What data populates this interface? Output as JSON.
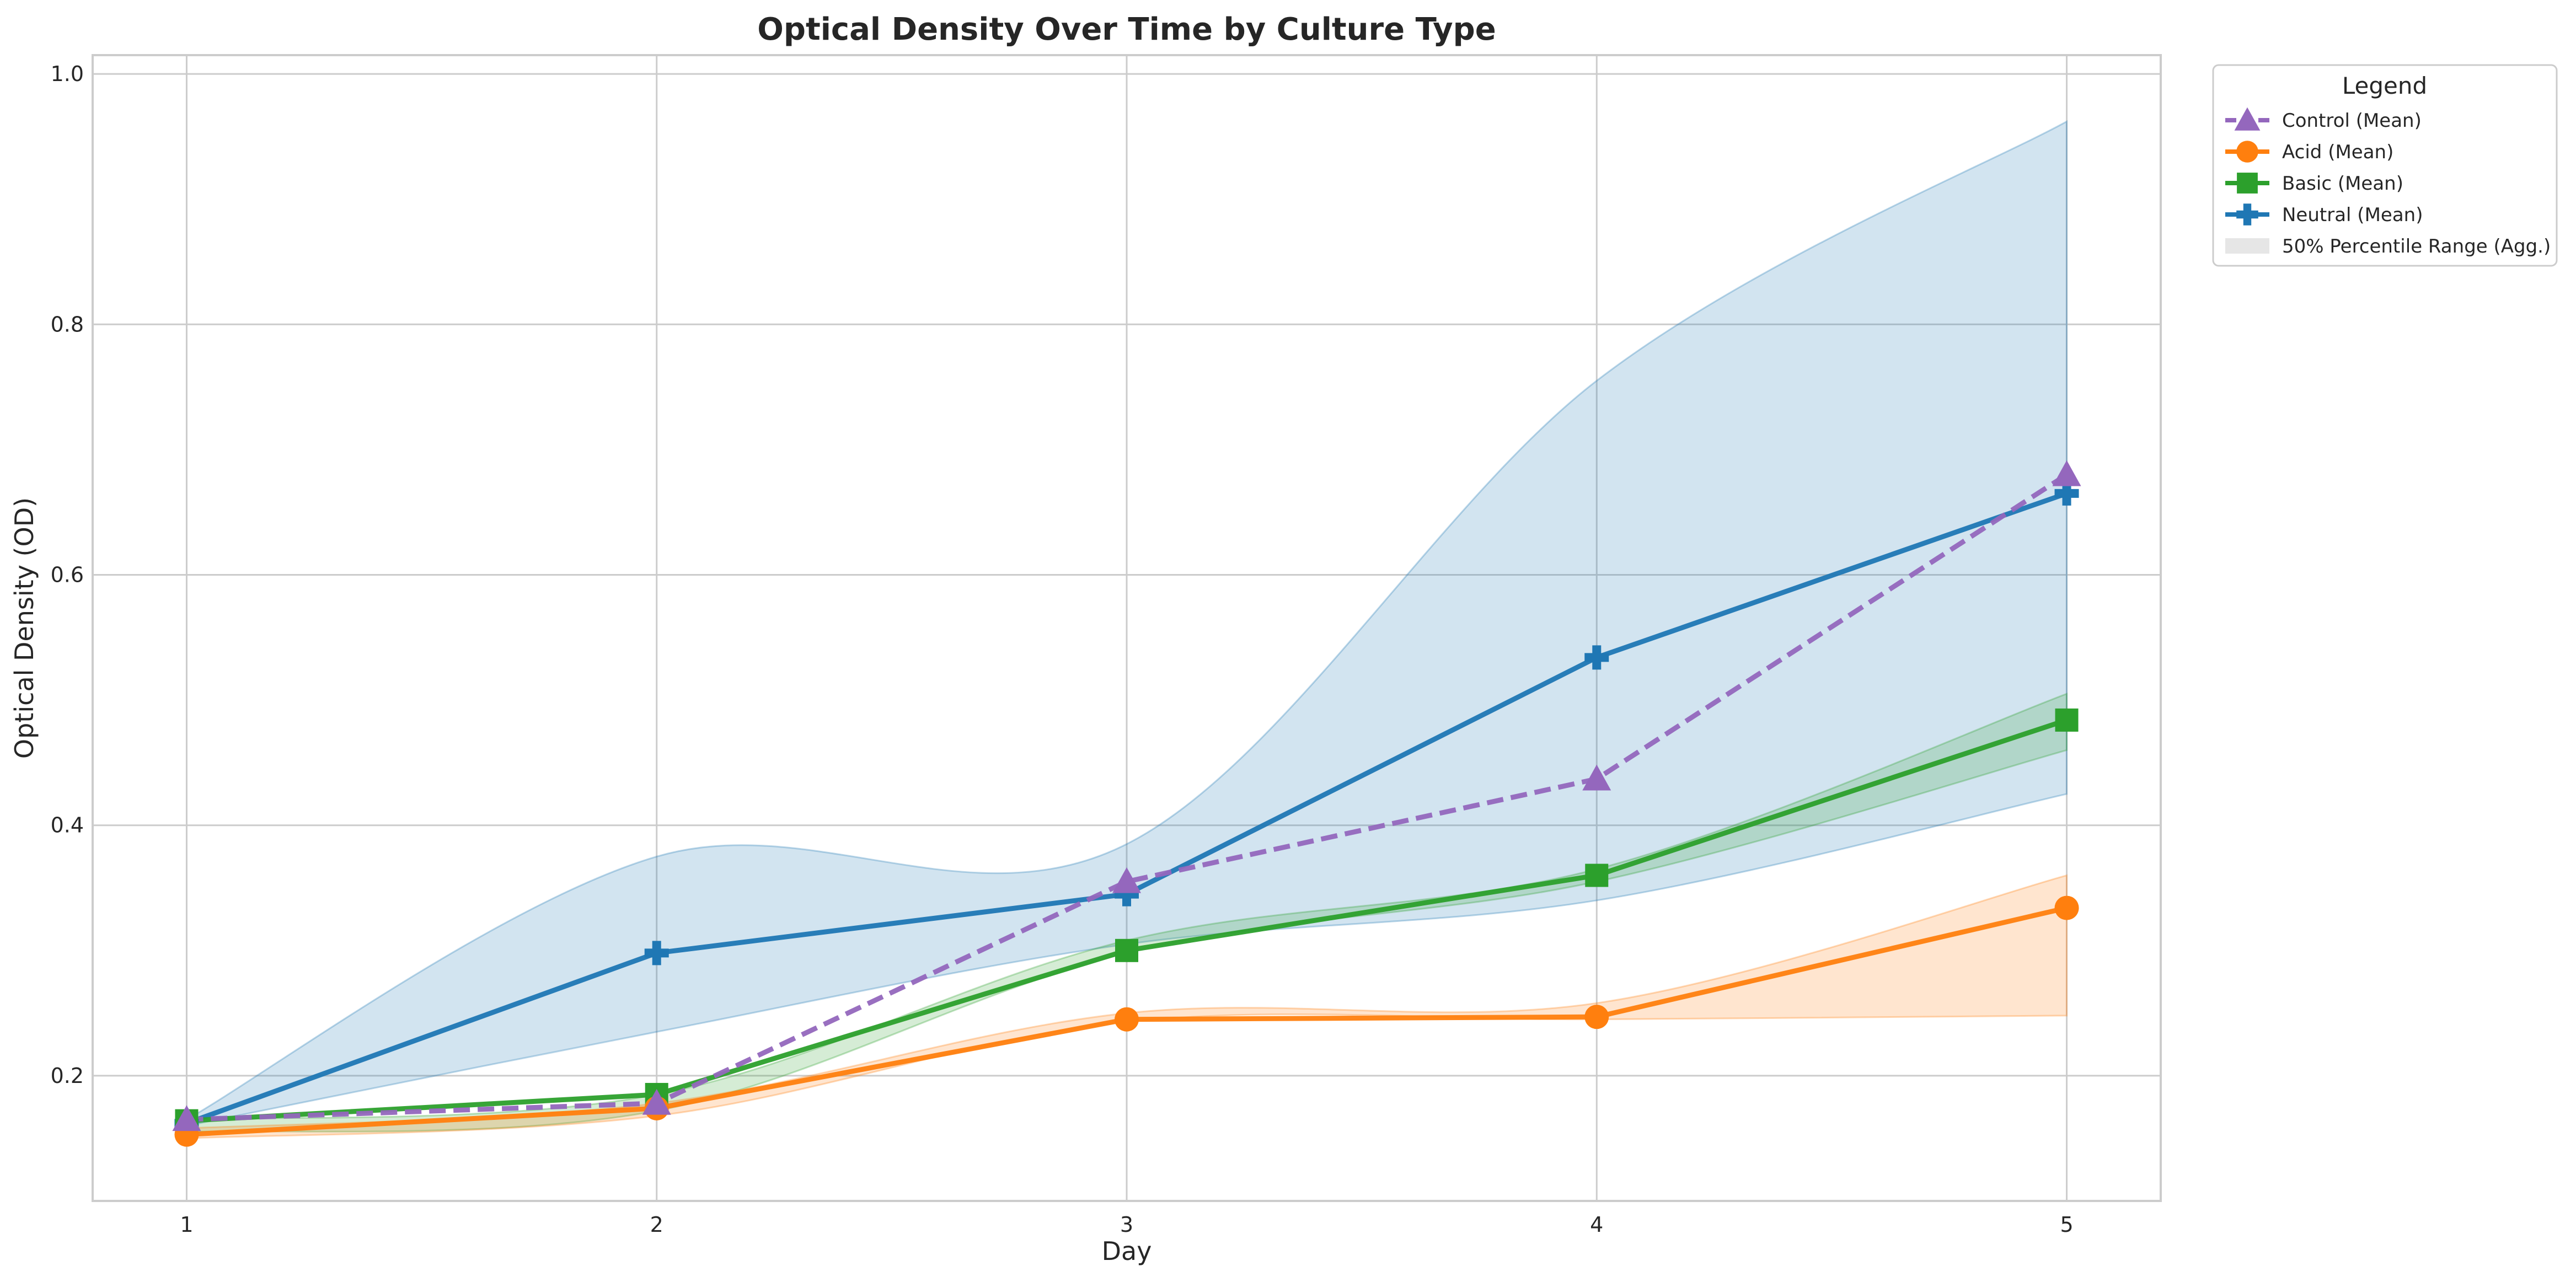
{
  "chart_data": {
    "type": "line",
    "title": "Optical Density Over Time by Culture Type",
    "xlabel": "Day",
    "ylabel": "Optical Density (OD)",
    "x": [
      1,
      2,
      3,
      4,
      5
    ],
    "xticks": [
      "1",
      "2",
      "3",
      "4",
      "5"
    ],
    "yticks": [
      "0.2",
      "0.4",
      "0.6",
      "0.8",
      "1.0"
    ],
    "ytick_values": [
      0.2,
      0.4,
      0.6,
      0.8,
      1.0
    ],
    "xlim": [
      0.8,
      5.2
    ],
    "ylim": [
      0.1,
      1.015
    ],
    "grid": true,
    "legend": {
      "title": "Legend",
      "placement": "outside top-right",
      "entries": [
        "Control (Mean)",
        "Acid (Mean)",
        "Basic (Mean)",
        "Neutral (Mean)",
        "50% Percentile Range (Agg.)"
      ]
    },
    "series": [
      {
        "name": "Control (Mean)",
        "values": [
          0.165,
          0.178,
          0.355,
          0.437,
          0.68
        ],
        "color": "#9467bd",
        "marker": "triangle",
        "dashed": true
      },
      {
        "name": "Acid (Mean)",
        "values": [
          0.153,
          0.174,
          0.245,
          0.247,
          0.334
        ],
        "color": "#ff7f0e",
        "marker": "circle",
        "dashed": false
      },
      {
        "name": "Basic (Mean)",
        "values": [
          0.164,
          0.185,
          0.3,
          0.36,
          0.484
        ],
        "color": "#2ca02c",
        "marker": "square",
        "dashed": false
      },
      {
        "name": "Neutral (Mean)",
        "values": [
          0.162,
          0.298,
          0.345,
          0.534,
          0.665
        ],
        "color": "#1f77b4",
        "marker": "plus",
        "dashed": false
      }
    ],
    "ranges": [
      {
        "of": "Neutral",
        "color": "#1f77b4",
        "lower": [
          0.16,
          0.235,
          0.305,
          0.34,
          0.425
        ],
        "upper": [
          0.165,
          0.375,
          0.385,
          0.755,
          0.962
        ]
      },
      {
        "of": "Basic",
        "color": "#2ca02c",
        "lower": [
          0.155,
          0.172,
          0.298,
          0.355,
          0.46
        ],
        "upper": [
          0.165,
          0.185,
          0.308,
          0.365,
          0.505
        ]
      },
      {
        "of": "Acid",
        "color": "#ff7f0e",
        "lower": [
          0.15,
          0.168,
          0.243,
          0.245,
          0.248
        ],
        "upper": [
          0.158,
          0.178,
          0.25,
          0.258,
          0.36
        ]
      }
    ],
    "legend_range_color": "#e6e6e6"
  }
}
